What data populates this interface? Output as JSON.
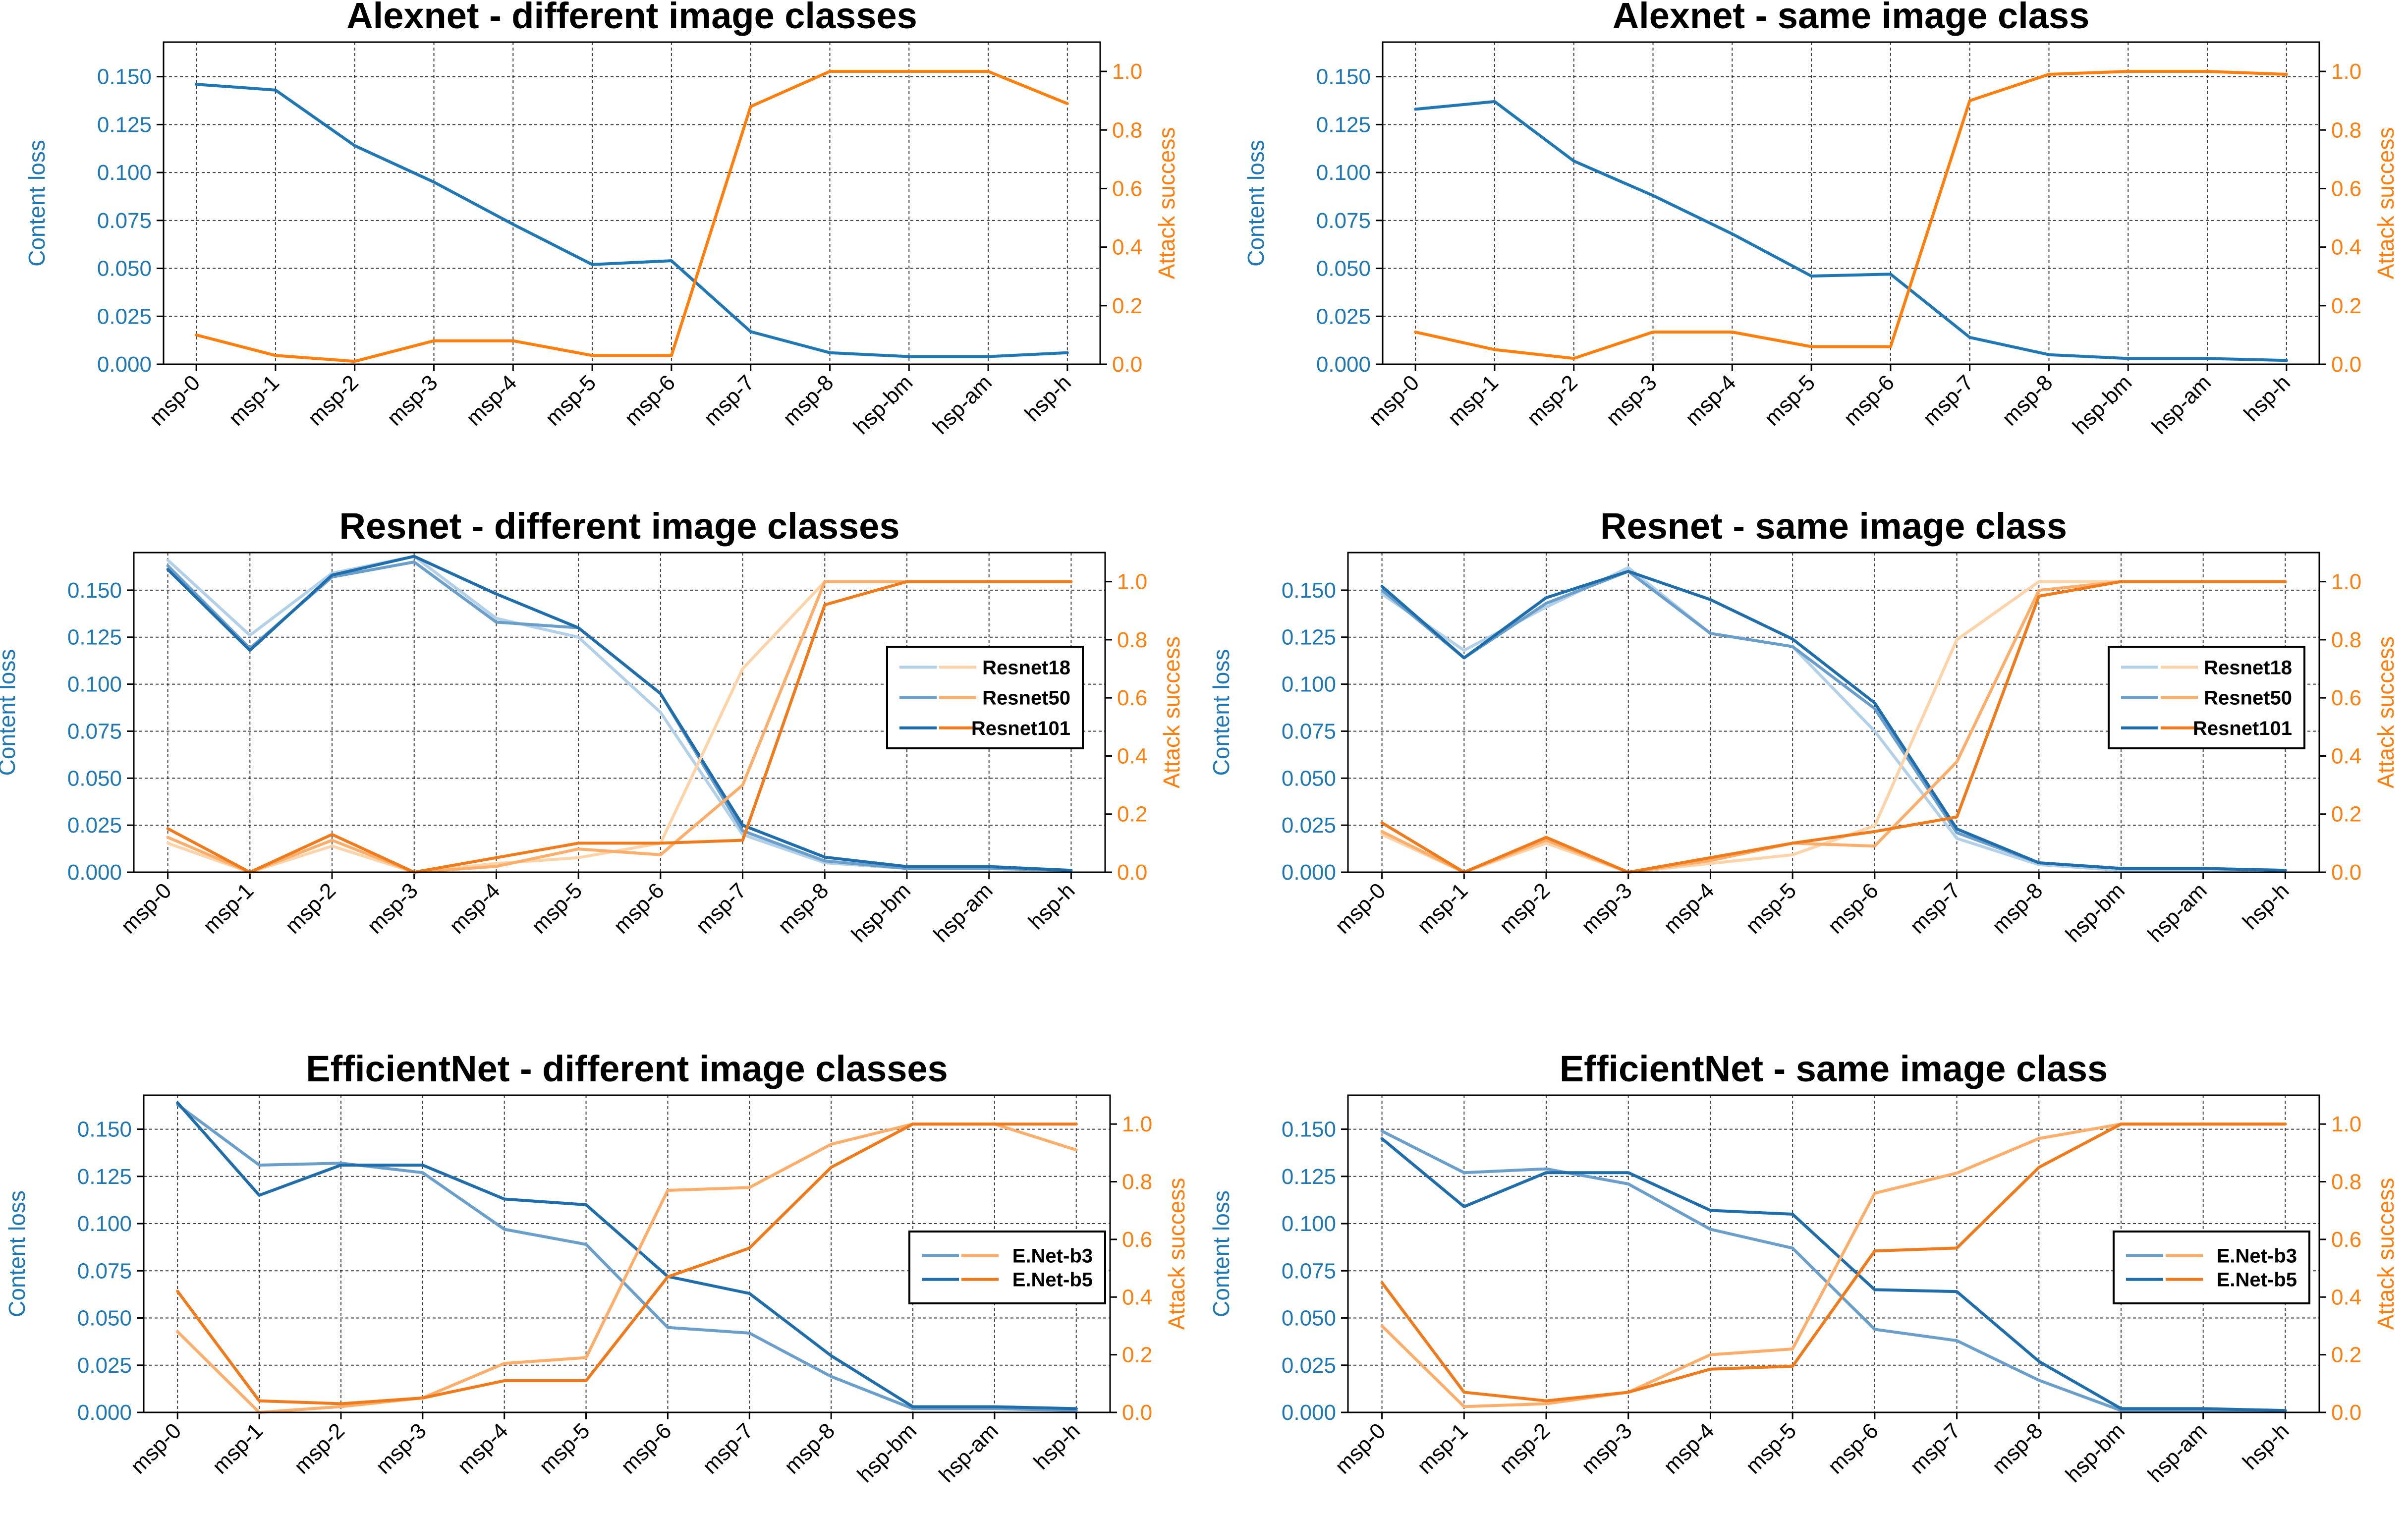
{
  "colors": {
    "blue": "#1f77b4",
    "orange": "#ff7f0e",
    "blue_shades": [
      "#b2d0e8",
      "#6a9fcb",
      "#1f6eab"
    ],
    "orange_shades": [
      "#fdd4a9",
      "#fdae6b",
      "#f07b1c"
    ],
    "grid": "#000000"
  },
  "chart_data": [
    {
      "type": "line",
      "title": "Alexnet - different image classes",
      "categories": [
        "msp-0",
        "msp-1",
        "msp-2",
        "msp-3",
        "msp-4",
        "msp-5",
        "msp-6",
        "msp-7",
        "msp-8",
        "hsp-bm",
        "hsp-am",
        "hsp-h"
      ],
      "ylabel": "Content loss",
      "y2label": "Attack success",
      "ylim": [
        0,
        0.168
      ],
      "y2lim": [
        0,
        1.1
      ],
      "yticks": [
        "0.000",
        "0.025",
        "0.050",
        "0.075",
        "0.100",
        "0.125",
        "0.150"
      ],
      "y2ticks": [
        "0.0",
        "0.2",
        "0.4",
        "0.6",
        "0.8",
        "1.0"
      ],
      "legend": [],
      "series": [
        {
          "name": "Alexnet",
          "axis": "left",
          "shade": 2,
          "values": [
            0.146,
            0.143,
            0.114,
            0.095,
            0.073,
            0.052,
            0.054,
            0.017,
            0.006,
            0.004,
            0.004,
            0.006
          ]
        },
        {
          "name": "Alexnet",
          "axis": "right",
          "shade": 2,
          "values": [
            0.1,
            0.03,
            0.01,
            0.08,
            0.08,
            0.03,
            0.03,
            0.88,
            1.0,
            1.0,
            1.0,
            0.89
          ]
        }
      ]
    },
    {
      "type": "line",
      "title": "Alexnet - same image class",
      "categories": [
        "msp-0",
        "msp-1",
        "msp-2",
        "msp-3",
        "msp-4",
        "msp-5",
        "msp-6",
        "msp-7",
        "msp-8",
        "hsp-bm",
        "hsp-am",
        "hsp-h"
      ],
      "ylabel": "Content loss",
      "y2label": "Attack success",
      "ylim": [
        0,
        0.168
      ],
      "y2lim": [
        0,
        1.1
      ],
      "yticks": [
        "0.000",
        "0.025",
        "0.050",
        "0.075",
        "0.100",
        "0.125",
        "0.150"
      ],
      "y2ticks": [
        "0.0",
        "0.2",
        "0.4",
        "0.6",
        "0.8",
        "1.0"
      ],
      "legend": [],
      "series": [
        {
          "name": "Alexnet",
          "axis": "left",
          "shade": 2,
          "values": [
            0.133,
            0.137,
            0.106,
            0.088,
            0.068,
            0.046,
            0.047,
            0.014,
            0.005,
            0.003,
            0.003,
            0.002
          ]
        },
        {
          "name": "Alexnet",
          "axis": "right",
          "shade": 2,
          "values": [
            0.11,
            0.05,
            0.02,
            0.11,
            0.11,
            0.06,
            0.06,
            0.9,
            0.99,
            1.0,
            1.0,
            0.99
          ]
        }
      ]
    },
    {
      "type": "line",
      "title": "Resnet - different image classes",
      "categories": [
        "msp-0",
        "msp-1",
        "msp-2",
        "msp-3",
        "msp-4",
        "msp-5",
        "msp-6",
        "msp-7",
        "msp-8",
        "hsp-bm",
        "hsp-am",
        "hsp-h"
      ],
      "ylabel": "Content loss",
      "y2label": "Attack success",
      "ylim": [
        0,
        0.17
      ],
      "y2lim": [
        0,
        1.1
      ],
      "yticks": [
        "0.000",
        "0.025",
        "0.050",
        "0.075",
        "0.100",
        "0.125",
        "0.150"
      ],
      "y2ticks": [
        "0.0",
        "0.2",
        "0.4",
        "0.6",
        "0.8",
        "1.0"
      ],
      "legend": [
        "Resnet18",
        "Resnet50",
        "Resnet101"
      ],
      "series": [
        {
          "name": "Resnet18",
          "axis": "left",
          "shade": 0,
          "values": [
            0.166,
            0.126,
            0.159,
            0.168,
            0.135,
            0.125,
            0.085,
            0.02,
            0.005,
            0.002,
            0.002,
            0.001
          ]
        },
        {
          "name": "Resnet50",
          "axis": "left",
          "shade": 1,
          "values": [
            0.163,
            0.119,
            0.157,
            0.165,
            0.133,
            0.13,
            0.095,
            0.022,
            0.006,
            0.002,
            0.002,
            0.001
          ]
        },
        {
          "name": "Resnet101",
          "axis": "left",
          "shade": 2,
          "values": [
            0.161,
            0.118,
            0.158,
            0.168,
            0.148,
            0.13,
            0.095,
            0.025,
            0.008,
            0.003,
            0.003,
            0.001
          ]
        },
        {
          "name": "Resnet18",
          "axis": "right",
          "shade": 0,
          "values": [
            0.1,
            0.0,
            0.09,
            0.0,
            0.03,
            0.05,
            0.1,
            0.7,
            1.0,
            1.0,
            1.0,
            1.0
          ]
        },
        {
          "name": "Resnet50",
          "axis": "right",
          "shade": 1,
          "values": [
            0.12,
            0.0,
            0.11,
            0.0,
            0.02,
            0.08,
            0.06,
            0.3,
            1.0,
            1.0,
            1.0,
            1.0
          ]
        },
        {
          "name": "Resnet101",
          "axis": "right",
          "shade": 2,
          "values": [
            0.15,
            0.0,
            0.13,
            0.0,
            0.05,
            0.1,
            0.1,
            0.11,
            0.92,
            1.0,
            1.0,
            1.0
          ]
        }
      ]
    },
    {
      "type": "line",
      "title": "Resnet - same image class",
      "categories": [
        "msp-0",
        "msp-1",
        "msp-2",
        "msp-3",
        "msp-4",
        "msp-5",
        "msp-6",
        "msp-7",
        "msp-8",
        "hsp-bm",
        "hsp-am",
        "hsp-h"
      ],
      "ylabel": "Content loss",
      "y2label": "Attack success",
      "ylim": [
        0,
        0.17
      ],
      "y2lim": [
        0,
        1.1
      ],
      "yticks": [
        "0.000",
        "0.025",
        "0.050",
        "0.075",
        "0.100",
        "0.125",
        "0.150"
      ],
      "y2ticks": [
        "0.0",
        "0.2",
        "0.4",
        "0.6",
        "0.8",
        "1.0"
      ],
      "legend": [
        "Resnet18",
        "Resnet50",
        "Resnet101"
      ],
      "series": [
        {
          "name": "Resnet18",
          "axis": "left",
          "shade": 0,
          "values": [
            0.148,
            0.118,
            0.141,
            0.162,
            0.127,
            0.12,
            0.075,
            0.018,
            0.004,
            0.001,
            0.001,
            0.001
          ]
        },
        {
          "name": "Resnet50",
          "axis": "left",
          "shade": 1,
          "values": [
            0.15,
            0.114,
            0.143,
            0.16,
            0.127,
            0.12,
            0.087,
            0.021,
            0.005,
            0.002,
            0.002,
            0.001
          ]
        },
        {
          "name": "Resnet101",
          "axis": "left",
          "shade": 2,
          "values": [
            0.152,
            0.114,
            0.146,
            0.16,
            0.145,
            0.124,
            0.09,
            0.023,
            0.005,
            0.002,
            0.002,
            0.001
          ]
        },
        {
          "name": "Resnet18",
          "axis": "right",
          "shade": 0,
          "values": [
            0.13,
            0.0,
            0.1,
            0.0,
            0.03,
            0.06,
            0.16,
            0.8,
            1.0,
            1.0,
            1.0,
            1.0
          ]
        },
        {
          "name": "Resnet50",
          "axis": "right",
          "shade": 1,
          "values": [
            0.14,
            0.0,
            0.11,
            0.0,
            0.04,
            0.1,
            0.09,
            0.38,
            0.97,
            1.0,
            1.0,
            1.0
          ]
        },
        {
          "name": "Resnet101",
          "axis": "right",
          "shade": 2,
          "values": [
            0.17,
            0.0,
            0.12,
            0.0,
            0.05,
            0.1,
            0.14,
            0.19,
            0.95,
            1.0,
            1.0,
            1.0
          ]
        }
      ]
    },
    {
      "type": "line",
      "title": "EfficientNet - different image classes",
      "categories": [
        "msp-0",
        "msp-1",
        "msp-2",
        "msp-3",
        "msp-4",
        "msp-5",
        "msp-6",
        "msp-7",
        "msp-8",
        "hsp-bm",
        "hsp-am",
        "hsp-h"
      ],
      "ylabel": "Content loss",
      "y2label": "Attack success",
      "ylim": [
        0,
        0.168
      ],
      "y2lim": [
        0,
        1.1
      ],
      "yticks": [
        "0.000",
        "0.025",
        "0.050",
        "0.075",
        "0.100",
        "0.125",
        "0.150"
      ],
      "y2ticks": [
        "0.0",
        "0.2",
        "0.4",
        "0.6",
        "0.8",
        "1.0"
      ],
      "legend": [
        "E.Net-b3",
        "E.Net-b5"
      ],
      "series": [
        {
          "name": "E.Net-b3",
          "axis": "left",
          "shade": 1,
          "values": [
            0.163,
            0.131,
            0.132,
            0.127,
            0.097,
            0.089,
            0.045,
            0.042,
            0.019,
            0.002,
            0.002,
            0.001
          ]
        },
        {
          "name": "E.Net-b5",
          "axis": "left",
          "shade": 2,
          "values": [
            0.164,
            0.115,
            0.131,
            0.131,
            0.113,
            0.11,
            0.072,
            0.063,
            0.03,
            0.003,
            0.003,
            0.002
          ]
        },
        {
          "name": "E.Net-b3",
          "axis": "right",
          "shade": 1,
          "values": [
            0.28,
            0.0,
            0.02,
            0.05,
            0.17,
            0.19,
            0.77,
            0.78,
            0.93,
            1.0,
            1.0,
            0.91
          ]
        },
        {
          "name": "E.Net-b5",
          "axis": "right",
          "shade": 2,
          "values": [
            0.42,
            0.04,
            0.03,
            0.05,
            0.11,
            0.11,
            0.47,
            0.57,
            0.85,
            1.0,
            1.0,
            1.0
          ]
        }
      ]
    },
    {
      "type": "line",
      "title": "EfficientNet - same image class",
      "categories": [
        "msp-0",
        "msp-1",
        "msp-2",
        "msp-3",
        "msp-4",
        "msp-5",
        "msp-6",
        "msp-7",
        "msp-8",
        "hsp-bm",
        "hsp-am",
        "hsp-h"
      ],
      "ylabel": "Content loss",
      "y2label": "Attack success",
      "ylim": [
        0,
        0.168
      ],
      "y2lim": [
        0,
        1.1
      ],
      "yticks": [
        "0.000",
        "0.025",
        "0.050",
        "0.075",
        "0.100",
        "0.125",
        "0.150"
      ],
      "y2ticks": [
        "0.0",
        "0.2",
        "0.4",
        "0.6",
        "0.8",
        "1.0"
      ],
      "legend": [
        "E.Net-b3",
        "E.Net-b5"
      ],
      "series": [
        {
          "name": "E.Net-b3",
          "axis": "left",
          "shade": 1,
          "values": [
            0.149,
            0.127,
            0.129,
            0.121,
            0.097,
            0.087,
            0.044,
            0.038,
            0.017,
            0.001,
            0.001,
            0.001
          ]
        },
        {
          "name": "E.Net-b5",
          "axis": "left",
          "shade": 2,
          "values": [
            0.145,
            0.109,
            0.127,
            0.127,
            0.107,
            0.105,
            0.065,
            0.064,
            0.027,
            0.002,
            0.002,
            0.001
          ]
        },
        {
          "name": "E.Net-b3",
          "axis": "right",
          "shade": 1,
          "values": [
            0.3,
            0.02,
            0.03,
            0.07,
            0.2,
            0.22,
            0.76,
            0.83,
            0.95,
            1.0,
            1.0,
            1.0
          ]
        },
        {
          "name": "E.Net-b5",
          "axis": "right",
          "shade": 2,
          "values": [
            0.45,
            0.07,
            0.04,
            0.07,
            0.15,
            0.16,
            0.56,
            0.57,
            0.85,
            1.0,
            1.0,
            1.0
          ]
        }
      ]
    }
  ]
}
